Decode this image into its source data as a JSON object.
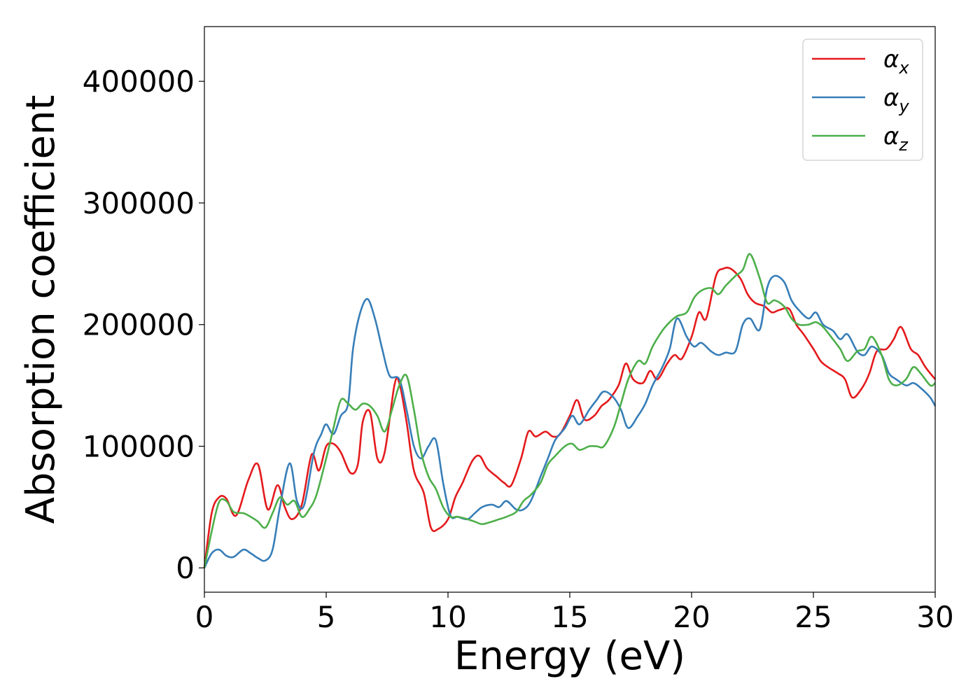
{
  "chart_data": {
    "type": "line",
    "xlabel": "Energy (eV)",
    "ylabel": "Absorption coefficient",
    "xlim": [
      0,
      30
    ],
    "ylim": [
      -20000,
      445000
    ],
    "xticks": [
      0,
      5,
      10,
      15,
      20,
      25,
      30
    ],
    "yticks": [
      0,
      100000,
      200000,
      300000,
      400000
    ],
    "grid": false,
    "legend_position": "top-right",
    "series": [
      {
        "name": "α",
        "subscript": "x",
        "color": "#e41a1c",
        "x": [
          0,
          0.3,
          0.6,
          0.9,
          1.3,
          1.8,
          2.2,
          2.6,
          3.0,
          3.3,
          3.6,
          4.0,
          4.4,
          4.7,
          5.0,
          5.3,
          5.6,
          6.0,
          6.3,
          6.5,
          6.8,
          7.1,
          7.4,
          7.8,
          8.0,
          8.3,
          8.6,
          9.0,
          9.3,
          9.6,
          10.0,
          10.3,
          10.6,
          11.0,
          11.3,
          11.6,
          12.0,
          12.3,
          12.6,
          13.0,
          13.3,
          13.6,
          14.0,
          14.3,
          14.6,
          15.0,
          15.3,
          15.6,
          16.0,
          16.3,
          16.6,
          17.0,
          17.3,
          17.6,
          18.0,
          18.3,
          18.6,
          19.0,
          19.3,
          19.6,
          20.0,
          20.3,
          20.6,
          21.0,
          21.3,
          21.6,
          22.0,
          22.3,
          22.6,
          23.0,
          23.3,
          23.6,
          24.0,
          24.3,
          24.6,
          25.0,
          25.3,
          25.6,
          26.0,
          26.3,
          26.6,
          27.0,
          27.3,
          27.6,
          28.0,
          28.3,
          28.6,
          29.0,
          29.3,
          29.6,
          30.0
        ],
        "y": [
          0,
          45000,
          58000,
          57000,
          43000,
          72000,
          85000,
          48000,
          68000,
          50000,
          40000,
          52000,
          93000,
          80000,
          100000,
          102000,
          95000,
          78000,
          85000,
          120000,
          128000,
          90000,
          95000,
          150000,
          152000,
          120000,
          80000,
          62000,
          33000,
          32000,
          40000,
          58000,
          70000,
          88000,
          92000,
          82000,
          75000,
          70000,
          68000,
          90000,
          112000,
          108000,
          112000,
          108000,
          110000,
          125000,
          138000,
          122000,
          125000,
          133000,
          138000,
          150000,
          168000,
          155000,
          152000,
          162000,
          155000,
          168000,
          175000,
          172000,
          190000,
          210000,
          205000,
          240000,
          246000,
          246000,
          238000,
          225000,
          218000,
          215000,
          210000,
          212000,
          213000,
          200000,
          192000,
          180000,
          170000,
          165000,
          160000,
          155000,
          140000,
          148000,
          160000,
          178000,
          180000,
          188000,
          198000,
          180000,
          175000,
          165000,
          155000
        ]
      },
      {
        "name": "α",
        "subscript": "y",
        "color": "#377eb8",
        "x": [
          0,
          0.3,
          0.6,
          0.9,
          1.2,
          1.6,
          1.9,
          2.2,
          2.5,
          2.8,
          3.1,
          3.5,
          3.8,
          4.1,
          4.5,
          4.8,
          5.0,
          5.3,
          5.6,
          5.9,
          6.1,
          6.4,
          6.7,
          7.0,
          7.3,
          7.6,
          8.0,
          8.3,
          8.6,
          8.9,
          9.2,
          9.5,
          9.8,
          10.1,
          10.4,
          10.8,
          11.1,
          11.4,
          11.8,
          12.1,
          12.4,
          12.8,
          13.1,
          13.4,
          13.8,
          14.1,
          14.4,
          14.8,
          15.1,
          15.4,
          15.8,
          16.1,
          16.4,
          16.8,
          17.1,
          17.4,
          17.8,
          18.1,
          18.4,
          18.8,
          19.1,
          19.4,
          19.8,
          20.1,
          20.4,
          20.8,
          21.1,
          21.4,
          21.8,
          22.1,
          22.4,
          22.8,
          23.1,
          23.4,
          23.8,
          24.1,
          24.4,
          24.8,
          25.1,
          25.4,
          25.8,
          26.1,
          26.4,
          26.8,
          27.1,
          27.4,
          27.8,
          28.1,
          28.4,
          28.8,
          29.1,
          29.4,
          29.8,
          30.0
        ],
        "y": [
          0,
          12000,
          15000,
          10000,
          9000,
          15000,
          12000,
          8000,
          6000,
          15000,
          50000,
          86000,
          55000,
          52000,
          95000,
          110000,
          118000,
          110000,
          125000,
          135000,
          180000,
          210000,
          221000,
          205000,
          180000,
          158000,
          155000,
          130000,
          100000,
          90000,
          100000,
          105000,
          70000,
          43000,
          42000,
          40000,
          45000,
          50000,
          52000,
          50000,
          55000,
          48000,
          48000,
          55000,
          75000,
          90000,
          105000,
          115000,
          125000,
          118000,
          130000,
          138000,
          145000,
          140000,
          130000,
          115000,
          125000,
          135000,
          150000,
          165000,
          180000,
          205000,
          190000,
          182000,
          185000,
          178000,
          175000,
          177000,
          178000,
          200000,
          205000,
          196000,
          230000,
          240000,
          235000,
          220000,
          212000,
          205000,
          210000,
          200000,
          195000,
          188000,
          192000,
          178000,
          175000,
          182000,
          175000,
          160000,
          155000,
          150000,
          152000,
          148000,
          140000,
          133000
        ]
      },
      {
        "name": "α",
        "subscript": "z",
        "color": "#4daf4a",
        "x": [
          0,
          0.3,
          0.6,
          0.9,
          1.2,
          1.6,
          1.9,
          2.2,
          2.5,
          2.8,
          3.1,
          3.4,
          3.7,
          4.0,
          4.3,
          4.6,
          5.0,
          5.3,
          5.6,
          5.9,
          6.2,
          6.5,
          6.8,
          7.1,
          7.4,
          7.7,
          8.0,
          8.3,
          8.6,
          8.9,
          9.2,
          9.5,
          9.8,
          10.1,
          10.4,
          10.8,
          11.1,
          11.4,
          11.8,
          12.1,
          12.4,
          12.8,
          13.1,
          13.4,
          13.8,
          14.1,
          14.4,
          14.8,
          15.1,
          15.4,
          15.8,
          16.1,
          16.4,
          16.8,
          17.1,
          17.4,
          17.8,
          18.1,
          18.4,
          18.8,
          19.1,
          19.4,
          19.8,
          20.1,
          20.4,
          20.8,
          21.1,
          21.4,
          21.8,
          22.1,
          22.4,
          22.8,
          23.1,
          23.4,
          23.8,
          24.1,
          24.4,
          24.8,
          25.1,
          25.4,
          25.8,
          26.1,
          26.4,
          26.8,
          27.1,
          27.4,
          27.8,
          28.1,
          28.4,
          28.8,
          29.1,
          29.4,
          29.8,
          30.0
        ],
        "y": [
          0,
          30000,
          54000,
          55000,
          46000,
          45000,
          42000,
          38000,
          33000,
          45000,
          58000,
          52000,
          55000,
          42000,
          48000,
          60000,
          90000,
          115000,
          138000,
          135000,
          130000,
          135000,
          133000,
          125000,
          112000,
          130000,
          150000,
          158000,
          130000,
          95000,
          75000,
          65000,
          50000,
          42000,
          42000,
          40000,
          38000,
          36000,
          38000,
          40000,
          42000,
          46000,
          55000,
          60000,
          70000,
          85000,
          92000,
          100000,
          102000,
          97000,
          100000,
          100000,
          100000,
          115000,
          135000,
          155000,
          170000,
          168000,
          182000,
          195000,
          202000,
          207000,
          210000,
          222000,
          228000,
          230000,
          225000,
          232000,
          240000,
          245000,
          258000,
          238000,
          218000,
          220000,
          215000,
          205000,
          200000,
          200000,
          202000,
          198000,
          188000,
          180000,
          170000,
          178000,
          180000,
          190000,
          175000,
          155000,
          150000,
          155000,
          165000,
          160000,
          150000,
          152000
        ]
      }
    ]
  }
}
